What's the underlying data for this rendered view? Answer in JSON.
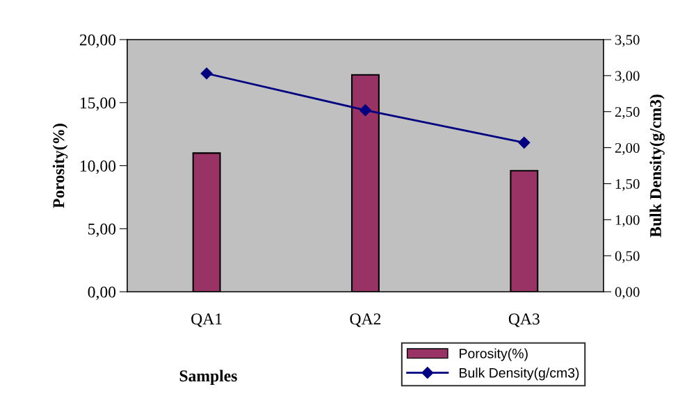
{
  "chart_data": {
    "type": "bar",
    "xlabel": "Samples",
    "ylabel": "Porosity(%)",
    "y2label": "Bulk Density(g/cm3)",
    "categories": [
      "QA1",
      "QA2",
      "QA3"
    ],
    "series": [
      {
        "name": "Porosity(%)",
        "color": "#993366",
        "values": [
          11.0,
          17.2,
          9.6
        ]
      },
      {
        "name": "Bulk Density(g/cm3)",
        "type": "line",
        "axis": "y2",
        "color": "#000080",
        "marker": "diamond",
        "values": [
          3.03,
          2.52,
          2.07
        ]
      }
    ],
    "ylim": [
      0,
      20
    ],
    "yticks": [
      {
        "value": 0,
        "label": "0,00"
      },
      {
        "value": 5,
        "label": "5,00"
      },
      {
        "value": 10,
        "label": "10,00"
      },
      {
        "value": 15,
        "label": "15,00"
      },
      {
        "value": 20,
        "label": "20,00"
      }
    ],
    "y2lim": [
      0,
      3.5
    ],
    "y2ticks": [
      {
        "value": 0,
        "label": "0,00"
      },
      {
        "value": 0.5,
        "label": "0,50"
      },
      {
        "value": 1,
        "label": "1,00"
      },
      {
        "value": 1.5,
        "label": "1,50"
      },
      {
        "value": 2,
        "label": "2,00"
      },
      {
        "value": 2.5,
        "label": "2,50"
      },
      {
        "value": 3,
        "label": "3,00"
      },
      {
        "value": 3.5,
        "label": "3,50"
      }
    ],
    "grid": false,
    "legend": "bottom right"
  }
}
